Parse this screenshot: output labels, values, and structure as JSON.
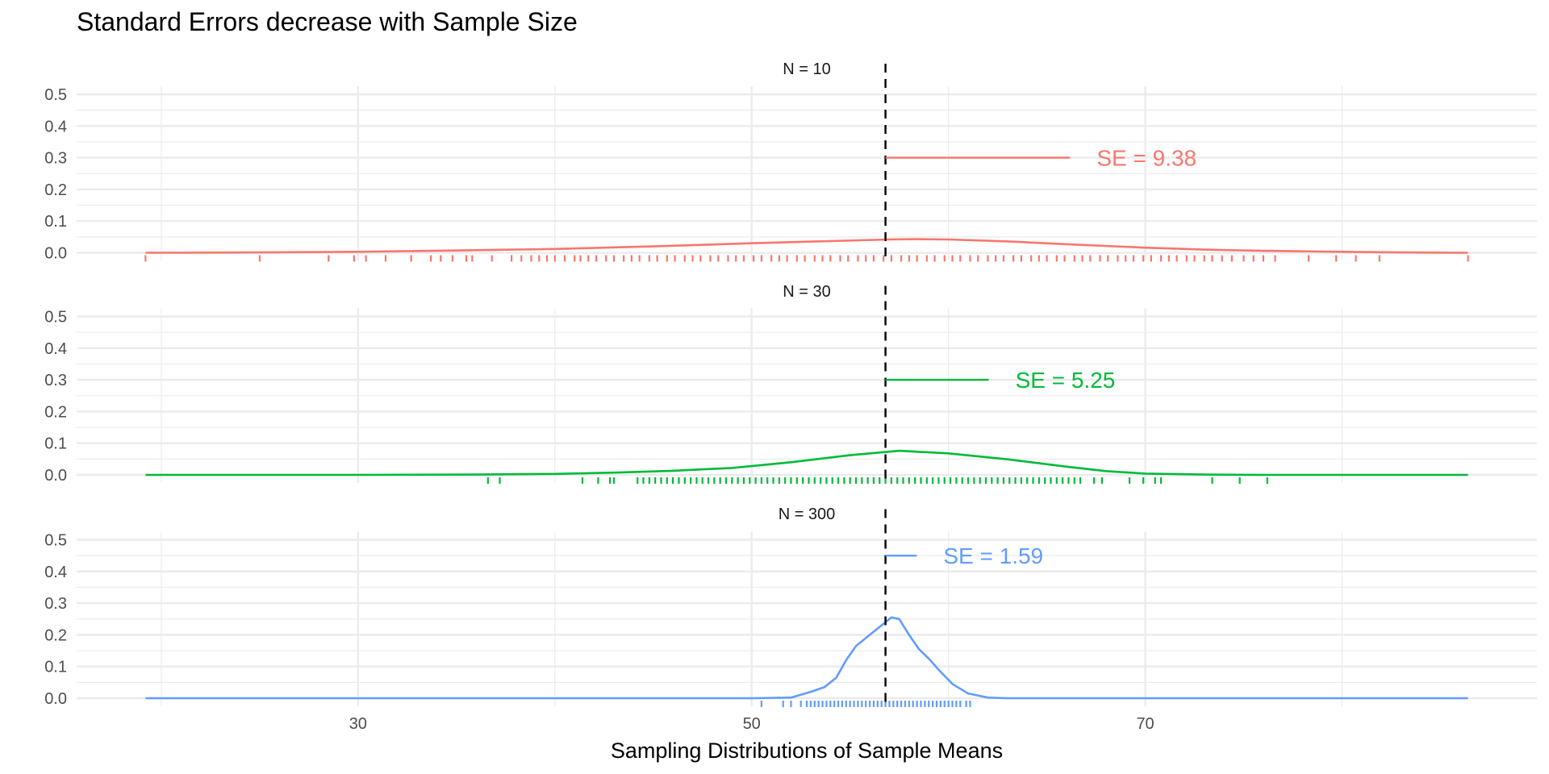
{
  "chart_data": {
    "type": "area",
    "title": "Standard Errors decrease with Sample Size",
    "xlabel": "Sampling Distributions of Sample Means",
    "ylabel": "",
    "xlim": [
      15.7,
      89.9
    ],
    "ylim": [
      0,
      0.5
    ],
    "x_ticks": [
      30,
      50,
      70
    ],
    "x_minor_gridlines": [
      20,
      40,
      60,
      80
    ],
    "y_ticks": [
      "0.0",
      "0.1",
      "0.2",
      "0.3",
      "0.4",
      "0.5"
    ],
    "grid": true,
    "legend": "none",
    "population_mean": 56.8,
    "reference_line": "dashed vertical at population mean",
    "panels": [
      {
        "strip_label": "N = 10",
        "color": "#F8766D",
        "se_label": "SE = 9.38",
        "se": 9.38,
        "se_segment_y": 0.3,
        "density": {
          "x": [
            19.2,
            25,
            30,
            35,
            40,
            45,
            50,
            54,
            57,
            58.5,
            60,
            63,
            66,
            70,
            73,
            76,
            80,
            83,
            86.4
          ],
          "y": [
            0.0,
            0.001,
            0.003,
            0.007,
            0.012,
            0.02,
            0.03,
            0.037,
            0.042,
            0.043,
            0.042,
            0.036,
            0.027,
            0.016,
            0.01,
            0.006,
            0.003,
            0.001,
            0.0
          ]
        },
        "rug": [
          19.2,
          25.0,
          28.5,
          29.8,
          30.4,
          31.4,
          32.7,
          33.7,
          34.2,
          34.8,
          35.5,
          35.8,
          36.8,
          37.8,
          38.3,
          38.8,
          39.2,
          39.6,
          40.0,
          40.5,
          41.0,
          41.3,
          41.7,
          42.1,
          42.6,
          43.0,
          43.5,
          43.9,
          44.3,
          44.8,
          45.2,
          45.7,
          46.1,
          46.6,
          47.0,
          47.4,
          47.9,
          48.3,
          48.8,
          49.2,
          49.6,
          50.1,
          50.5,
          51.0,
          51.4,
          51.8,
          52.3,
          52.7,
          53.2,
          53.6,
          54.0,
          54.5,
          54.9,
          55.4,
          55.8,
          56.2,
          56.7,
          57.1,
          57.6,
          58.0,
          58.4,
          58.9,
          59.3,
          59.8,
          60.2,
          60.6,
          61.1,
          61.5,
          62.0,
          62.4,
          62.8,
          63.3,
          63.7,
          64.2,
          64.6,
          65.0,
          65.5,
          65.9,
          66.4,
          66.8,
          67.2,
          67.7,
          68.1,
          68.6,
          69.0,
          69.4,
          69.9,
          70.3,
          70.8,
          71.2,
          71.6,
          72.1,
          72.5,
          73.0,
          73.4,
          73.9,
          74.4,
          75.0,
          75.5,
          76.0,
          76.6,
          78.3,
          79.7,
          80.7,
          81.9,
          86.4
        ]
      },
      {
        "strip_label": "N = 30",
        "color": "#00BA38",
        "se_label": "SE = 5.25",
        "se": 5.25,
        "se_segment_y": 0.3,
        "density": {
          "x": [
            19.2,
            30,
            36,
            40,
            43,
            46,
            49,
            52,
            55,
            57.5,
            60,
            63,
            66,
            68,
            70,
            73,
            76,
            80,
            86.4
          ],
          "y": [
            0.0,
            0.0,
            0.001,
            0.003,
            0.007,
            0.013,
            0.022,
            0.04,
            0.062,
            0.076,
            0.068,
            0.049,
            0.026,
            0.012,
            0.004,
            0.001,
            0.0,
            0.0,
            0.0
          ]
        },
        "rug": [
          36.6,
          37.2,
          41.4,
          42.2,
          42.8,
          43.0,
          44.2,
          44.5,
          44.8,
          45.1,
          45.4,
          45.7,
          46.0,
          46.3,
          46.6,
          46.9,
          47.2,
          47.5,
          47.8,
          48.1,
          48.4,
          48.7,
          49.0,
          49.3,
          49.6,
          49.9,
          50.2,
          50.5,
          50.8,
          51.1,
          51.4,
          51.7,
          52.0,
          52.3,
          52.6,
          52.9,
          53.2,
          53.5,
          53.8,
          54.1,
          54.4,
          54.7,
          55.0,
          55.3,
          55.6,
          55.9,
          56.2,
          56.5,
          56.8,
          57.1,
          57.4,
          57.7,
          58.0,
          58.3,
          58.6,
          58.9,
          59.2,
          59.5,
          59.8,
          60.1,
          60.4,
          60.7,
          61.0,
          61.3,
          61.6,
          61.9,
          62.2,
          62.5,
          62.8,
          63.1,
          63.4,
          63.7,
          64.0,
          64.3,
          64.6,
          64.9,
          65.2,
          65.5,
          65.8,
          66.1,
          66.4,
          66.7,
          67.4,
          67.8,
          69.2,
          69.9,
          70.5,
          70.8,
          73.4,
          74.8,
          76.2
        ]
      },
      {
        "strip_label": "N = 300",
        "color": "#619CFF",
        "se_label": "SE = 1.59",
        "se": 1.59,
        "se_segment_y": 0.45,
        "density": {
          "x": [
            19.2,
            45,
            50,
            52,
            53,
            53.7,
            54.3,
            54.8,
            55.3,
            56.0,
            56.6,
            57.1,
            57.5,
            58.0,
            58.5,
            59.0,
            59.5,
            60.2,
            61.0,
            62.0,
            63,
            70,
            86.4
          ],
          "y": [
            0.0,
            0.0,
            0.0,
            0.002,
            0.02,
            0.035,
            0.065,
            0.12,
            0.165,
            0.2,
            0.23,
            0.255,
            0.25,
            0.2,
            0.155,
            0.125,
            0.09,
            0.045,
            0.015,
            0.002,
            0.0,
            0.0,
            0.0
          ]
        },
        "rug": [
          50.5,
          51.6,
          52.0,
          52.5,
          52.8,
          53.0,
          53.2,
          53.4,
          53.6,
          53.8,
          54.0,
          54.2,
          54.4,
          54.6,
          54.8,
          55.0,
          55.2,
          55.4,
          55.6,
          55.8,
          56.0,
          56.2,
          56.4,
          56.6,
          56.8,
          57.0,
          57.2,
          57.4,
          57.6,
          57.8,
          58.0,
          58.2,
          58.4,
          58.6,
          58.8,
          59.0,
          59.2,
          59.4,
          59.6,
          59.8,
          60.0,
          60.2,
          60.4,
          60.6,
          60.9,
          61.1
        ]
      }
    ]
  }
}
